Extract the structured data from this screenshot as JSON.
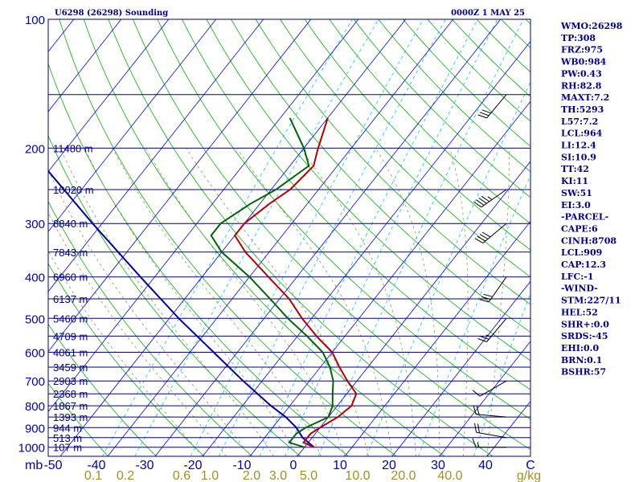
{
  "header": {
    "station": "U6298 (26298) Sounding",
    "time": "0000Z  1 MAY 25"
  },
  "indices": [
    "WMO:26298",
    "TP:308",
    "FRZ:975",
    "WB0:984",
    "PW:0.43",
    "RH:82.8",
    "MAXT:7.2",
    "TH:5293",
    "L57:7.2",
    "LCL:964",
    "LI:12.4",
    "SI:10.9",
    "TT:42",
    "KI:11",
    "SW:51",
    "EI:3.0",
    "-PARCEL-",
    "CAPE:6",
    "CINH:8708",
    "LCL:909",
    "CAP:12.3",
    "LFC:-1",
    "-WIND-",
    "STM:227/11",
    "HEL:52",
    "SHR+:0.0",
    "SRDS:-45",
    "EHI:0.0",
    "BRN:0.1",
    "BSHR:57"
  ],
  "colors": {
    "isobar": "#000080",
    "isotherm": "#0000ff",
    "dry_adiabat": "#00b400",
    "moist_adiabat": "#96965a",
    "mixing_ratio": "#00c8ff",
    "temperature": "#b40000",
    "dewpoint": "#006400",
    "parcel": "#0000a0",
    "wind": "#000000",
    "mixing_label": "#a09020"
  },
  "chart_data": {
    "type": "skew-t",
    "pressure_ticks": [
      100,
      200,
      300,
      400,
      500,
      600,
      700,
      800,
      900,
      1000
    ],
    "pressure_unit_label": "mb",
    "temperature_ticks": [
      "-50",
      "-40",
      "-30",
      "-20",
      "-10",
      "0",
      "10",
      "20",
      "30",
      "40",
      "C"
    ],
    "mixing_ratio_labels": [
      "0.1",
      "0.2",
      "0.6",
      "1.0",
      "2.0",
      "3.0",
      "5.0",
      "10.0",
      "20.0",
      "40.0",
      "g/kg"
    ],
    "height_labels": [
      {
        "p": 200,
        "label": "11480 m"
      },
      {
        "p": 250,
        "label": "10020 m"
      },
      {
        "p": 300,
        "label": "8840 m"
      },
      {
        "p": 350,
        "label": "7843 m"
      },
      {
        "p": 400,
        "label": "6960 m"
      },
      {
        "p": 450,
        "label": "6137 m"
      },
      {
        "p": 500,
        "label": "5460 m"
      },
      {
        "p": 550,
        "label": "4709 m"
      },
      {
        "p": 600,
        "label": "4061 m"
      },
      {
        "p": 650,
        "label": "3459 m"
      },
      {
        "p": 700,
        "label": "2903 m"
      },
      {
        "p": 750,
        "label": "2368 m"
      },
      {
        "p": 800,
        "label": "1867 m"
      },
      {
        "p": 850,
        "label": "1393 m"
      },
      {
        "p": 900,
        "label": "944 m"
      },
      {
        "p": 950,
        "label": "513 m"
      },
      {
        "p": 1000,
        "label": "107 m"
      }
    ],
    "temperature_profile": [
      {
        "p": 1000,
        "t": 2.0
      },
      {
        "p": 975,
        "t": -1.0
      },
      {
        "p": 930,
        "t": -1.0
      },
      {
        "p": 900,
        "t": 0.0
      },
      {
        "p": 850,
        "t": 2.0
      },
      {
        "p": 800,
        "t": 3.0
      },
      {
        "p": 750,
        "t": 2.0
      },
      {
        "p": 700,
        "t": -2.0
      },
      {
        "p": 650,
        "t": -6.0
      },
      {
        "p": 600,
        "t": -10.0
      },
      {
        "p": 550,
        "t": -16.0
      },
      {
        "p": 500,
        "t": -22.0
      },
      {
        "p": 450,
        "t": -28.0
      },
      {
        "p": 400,
        "t": -36.0
      },
      {
        "p": 350,
        "t": -45.0
      },
      {
        "p": 320,
        "t": -50.0
      },
      {
        "p": 300,
        "t": -50.0
      },
      {
        "p": 270,
        "t": -48.0
      },
      {
        "p": 250,
        "t": -46.0
      },
      {
        "p": 220,
        "t": -45.0
      },
      {
        "p": 200,
        "t": -47.0
      },
      {
        "p": 170,
        "t": -50.0
      }
    ],
    "dewpoint_profile": [
      {
        "p": 1000,
        "t": 0.0
      },
      {
        "p": 975,
        "t": -4.0
      },
      {
        "p": 930,
        "t": -4.0
      },
      {
        "p": 900,
        "t": -3.0
      },
      {
        "p": 850,
        "t": 0.0
      },
      {
        "p": 800,
        "t": -1.0
      },
      {
        "p": 750,
        "t": -3.0
      },
      {
        "p": 700,
        "t": -5.0
      },
      {
        "p": 650,
        "t": -8.0
      },
      {
        "p": 600,
        "t": -12.0
      },
      {
        "p": 550,
        "t": -18.0
      },
      {
        "p": 500,
        "t": -25.0
      },
      {
        "p": 450,
        "t": -32.0
      },
      {
        "p": 400,
        "t": -40.0
      },
      {
        "p": 350,
        "t": -50.0
      },
      {
        "p": 320,
        "t": -55.0
      },
      {
        "p": 300,
        "t": -55.0
      },
      {
        "p": 270,
        "t": -52.0
      },
      {
        "p": 250,
        "t": -49.0
      },
      {
        "p": 220,
        "t": -46.0
      },
      {
        "p": 200,
        "t": -50.0
      },
      {
        "p": 170,
        "t": -58.0
      }
    ],
    "parcel_profile": [
      {
        "p": 1000,
        "t": 2.0
      },
      {
        "p": 950,
        "t": -2.0
      },
      {
        "p": 900,
        "t": -5.0
      },
      {
        "p": 850,
        "t": -9.0
      },
      {
        "p": 800,
        "t": -14.0
      },
      {
        "p": 700,
        "t": -24.0
      },
      {
        "p": 600,
        "t": -35.0
      },
      {
        "p": 500,
        "t": -48.0
      },
      {
        "p": 400,
        "t": -63.0
      },
      {
        "p": 300,
        "t": -82.0
      },
      {
        "p": 200,
        "t": -108.0
      },
      {
        "p": 130,
        "t": -128.0
      }
    ],
    "winds": [
      {
        "p": 1000,
        "dir": 270,
        "spd": 15
      },
      {
        "p": 950,
        "dir": 280,
        "spd": 20
      },
      {
        "p": 850,
        "dir": 275,
        "spd": 20
      },
      {
        "p": 700,
        "dir": 240,
        "spd": 10
      },
      {
        "p": 500,
        "dir": 220,
        "spd": 25
      },
      {
        "p": 400,
        "dir": 215,
        "spd": 30
      },
      {
        "p": 300,
        "dir": 230,
        "spd": 40
      },
      {
        "p": 250,
        "dir": 235,
        "spd": 45
      },
      {
        "p": 150,
        "dir": 220,
        "spd": 30
      }
    ]
  }
}
